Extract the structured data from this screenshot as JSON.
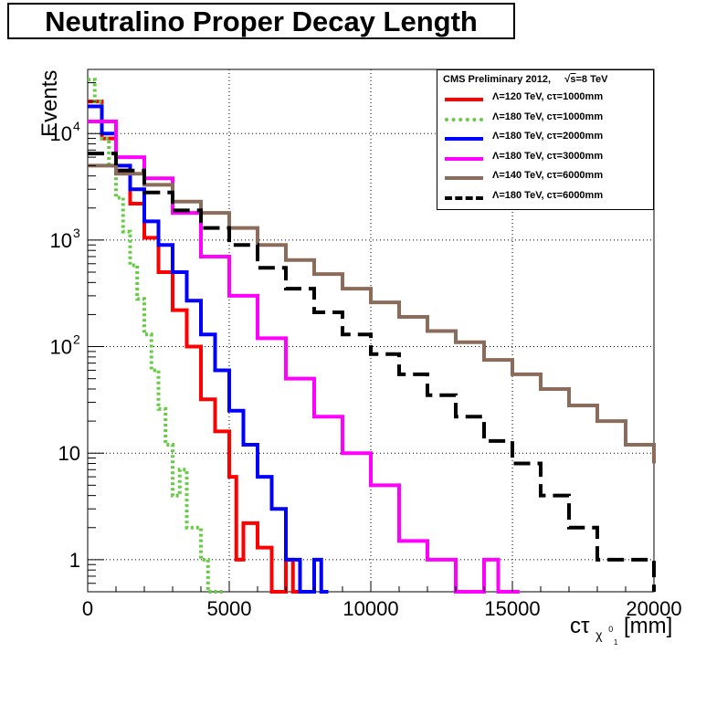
{
  "chart_data": {
    "type": "line",
    "title": "Neutralino Proper Decay Length",
    "ylabel": "Events",
    "xlabel_base": "cτ",
    "xlabel_sub": "χ",
    "xlabel_sub_sup": "0",
    "xlabel_sub_sub": "1",
    "xlabel_unit": "[mm]",
    "xlim": [
      0,
      20000
    ],
    "ylim": [
      0.5,
      40000
    ],
    "yscale": "log",
    "grid": true,
    "xticks": [
      0,
      5000,
      10000,
      15000,
      20000
    ],
    "xtick_labels": [
      "0",
      "5000",
      "10000",
      "15000",
      "20000"
    ],
    "ytick_labels": [
      {
        "value": 1,
        "base": "1",
        "exp": ""
      },
      {
        "value": 10,
        "base": "10",
        "exp": ""
      },
      {
        "value": 100,
        "base": "10",
        "exp": "2"
      },
      {
        "value": 1000,
        "base": "10",
        "exp": "3"
      },
      {
        "value": 10000,
        "base": "10",
        "exp": "4"
      }
    ],
    "legend_header_text": "CMS Preliminary 2012,",
    "legend_header_energy": "s",
    "legend_header_energy_suffix": "=8 TeV",
    "legend_position": "top-right",
    "series": [
      {
        "name": "Λ=120 TeV, cτ=1000mm",
        "color": "#ff0000",
        "dash": "solid",
        "x": [
          0,
          500,
          1000,
          1500,
          2000,
          2500,
          3000,
          3500,
          4000,
          4500,
          5000,
          5250,
          5500,
          6000,
          6500,
          7000,
          7250
        ],
        "y": [
          20000,
          9000,
          4500,
          2200,
          1050,
          500,
          220,
          100,
          32,
          16,
          6,
          1,
          2.2,
          1.3,
          0.5,
          1,
          0.5
        ]
      },
      {
        "name": "Λ=180 TeV, cτ=1000mm",
        "color": "#66cc44",
        "dash": "dotted",
        "x": [
          0,
          250,
          500,
          750,
          1000,
          1250,
          1500,
          1750,
          2000,
          2250,
          2500,
          2750,
          3000,
          3250,
          3500,
          4000,
          4250,
          4500
        ],
        "y": [
          32000,
          20000,
          9000,
          5000,
          2500,
          1200,
          580,
          280,
          130,
          60,
          26,
          12,
          4,
          7,
          2,
          1,
          0.5,
          0.5
        ]
      },
      {
        "name": "Λ=180 TeV, cτ=2000mm",
        "color": "#0000ff",
        "dash": "solid",
        "x": [
          0,
          500,
          1000,
          1500,
          2000,
          2500,
          3000,
          3500,
          4000,
          4500,
          5000,
          5500,
          6000,
          6500,
          7000,
          7500,
          8000,
          8250
        ],
        "y": [
          18000,
          10000,
          5000,
          3000,
          1500,
          900,
          500,
          270,
          130,
          60,
          25,
          12,
          6,
          3,
          1,
          0.5,
          1,
          0.5
        ]
      },
      {
        "name": "Λ=180 TeV, cτ=3000mm",
        "color": "#ff00ff",
        "dash": "solid",
        "x": [
          0,
          1000,
          2000,
          3000,
          4000,
          5000,
          6000,
          7000,
          8000,
          9000,
          10000,
          11000,
          12000,
          13000,
          14000,
          14500,
          15000
        ],
        "y": [
          13000,
          6000,
          3800,
          1800,
          700,
          300,
          120,
          50,
          22,
          10,
          5,
          1.5,
          1,
          0.5,
          1,
          0.5,
          0.5
        ]
      },
      {
        "name": "Λ=140 TeV, cτ=6000mm",
        "color": "#8b6b5a",
        "dash": "solid",
        "x": [
          0,
          1000,
          2000,
          3000,
          4000,
          5000,
          6000,
          7000,
          8000,
          9000,
          10000,
          11000,
          12000,
          13000,
          14000,
          15000,
          16000,
          17000,
          18000,
          19000,
          20000
        ],
        "y": [
          5000,
          4200,
          3300,
          2300,
          1800,
          1300,
          900,
          650,
          480,
          350,
          260,
          190,
          140,
          110,
          75,
          55,
          40,
          28,
          20,
          12,
          8
        ]
      },
      {
        "name": "Λ=180 TeV, cτ=6000mm",
        "color": "#000000",
        "dash": "dashed",
        "x": [
          0,
          1000,
          2000,
          3000,
          4000,
          5000,
          6000,
          7000,
          8000,
          9000,
          10000,
          11000,
          12000,
          13000,
          14000,
          15000,
          16000,
          17000,
          18000,
          19000,
          20000
        ],
        "y": [
          6500,
          4500,
          2800,
          1900,
          1300,
          900,
          550,
          350,
          210,
          130,
          85,
          55,
          35,
          22,
          13,
          8,
          4,
          2,
          1,
          1,
          0.5
        ]
      }
    ]
  }
}
